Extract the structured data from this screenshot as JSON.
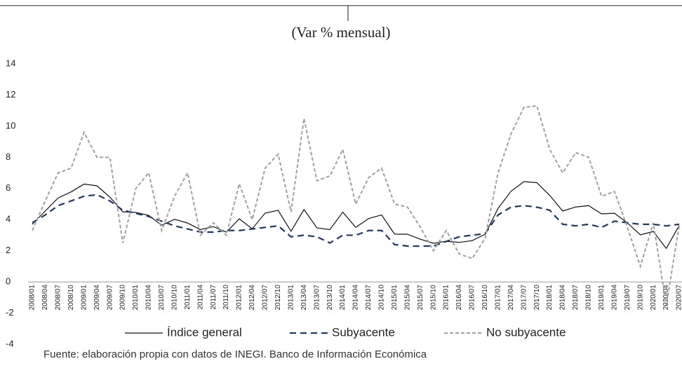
{
  "chart_data": {
    "type": "line",
    "subtitle": "(Var % mensual)",
    "source": "Fuente: elaboración propia con datos de INEGI. Banco de Información Económica",
    "categories": [
      "2008/01",
      "2008/04",
      "2008/07",
      "2008/10",
      "2009/01",
      "2009/04",
      "2009/07",
      "2009/10",
      "2010/01",
      "2010/04",
      "2010/07",
      "2010/10",
      "2011/01",
      "2011/04",
      "2011/07",
      "2011/10",
      "2012/01",
      "2012/04",
      "2012/07",
      "2012/10",
      "2013/01",
      "2013/04",
      "2013/07",
      "2013/10",
      "2014/01",
      "2014/04",
      "2014/07",
      "2014/10",
      "2015/01",
      "2015/04",
      "2015/07",
      "2015/10",
      "2016/01",
      "2016/04",
      "2016/07",
      "2016/10",
      "2017/01",
      "2017/04",
      "2017/07",
      "2017/10",
      "2018/01",
      "2018/04",
      "2018/07",
      "2018/10",
      "2019/01",
      "2019/04",
      "2019/07",
      "2019/10",
      "2020/01",
      "2020/04",
      "2020/07"
    ],
    "series": [
      {
        "name": "Índice general",
        "color": "#111111",
        "dash": "",
        "width": 1.2,
        "values": [
          3.7,
          4.55,
          5.39,
          5.78,
          6.28,
          6.17,
          5.44,
          4.5,
          4.46,
          4.27,
          3.64,
          4.02,
          3.78,
          3.36,
          3.55,
          3.2,
          4.05,
          3.41,
          4.42,
          4.6,
          3.25,
          4.65,
          3.47,
          3.36,
          4.48,
          3.5,
          4.07,
          4.3,
          3.07,
          3.06,
          2.74,
          2.48,
          2.61,
          2.54,
          2.65,
          3.06,
          4.72,
          5.82,
          6.44,
          6.37,
          5.55,
          4.55,
          4.81,
          4.9,
          4.37,
          4.41,
          3.78,
          3.02,
          3.24,
          2.15,
          3.62
        ]
      },
      {
        "name": "Subyacente",
        "color": "#1f3864",
        "dash": "9 6",
        "width": 2.2,
        "values": [
          3.8,
          4.3,
          4.9,
          5.2,
          5.5,
          5.6,
          5.2,
          4.6,
          4.4,
          4.2,
          3.9,
          3.6,
          3.4,
          3.2,
          3.2,
          3.3,
          3.3,
          3.4,
          3.5,
          3.6,
          2.9,
          3.0,
          2.9,
          2.5,
          3.0,
          3.0,
          3.3,
          3.3,
          2.4,
          2.3,
          2.3,
          2.3,
          2.6,
          2.9,
          3.0,
          3.1,
          4.3,
          4.8,
          4.9,
          4.8,
          4.6,
          3.7,
          3.6,
          3.7,
          3.5,
          3.9,
          3.8,
          3.7,
          3.7,
          3.6,
          3.7
        ]
      },
      {
        "name": "No subyacente",
        "color": "#a0a0a0",
        "dash": "5 3",
        "width": 2,
        "values": [
          3.3,
          5.2,
          7.0,
          7.3,
          9.6,
          8.0,
          8.0,
          2.5,
          6.0,
          7.0,
          3.3,
          5.5,
          7.0,
          3.0,
          3.8,
          3.0,
          6.3,
          4.0,
          7.3,
          8.2,
          4.5,
          10.5,
          6.5,
          6.8,
          8.5,
          5.0,
          6.7,
          7.3,
          5.0,
          4.8,
          3.5,
          2.0,
          3.3,
          1.8,
          1.5,
          2.8,
          7.0,
          9.5,
          11.2,
          11.3,
          8.5,
          7.0,
          8.3,
          8.0,
          5.5,
          5.8,
          3.5,
          1.0,
          3.8,
          -1.5,
          3.6
        ]
      }
    ],
    "ylim": [
      -4,
      14
    ],
    "yticks": [
      -4,
      -2,
      0,
      2,
      4,
      6,
      8,
      10,
      12,
      14
    ]
  }
}
